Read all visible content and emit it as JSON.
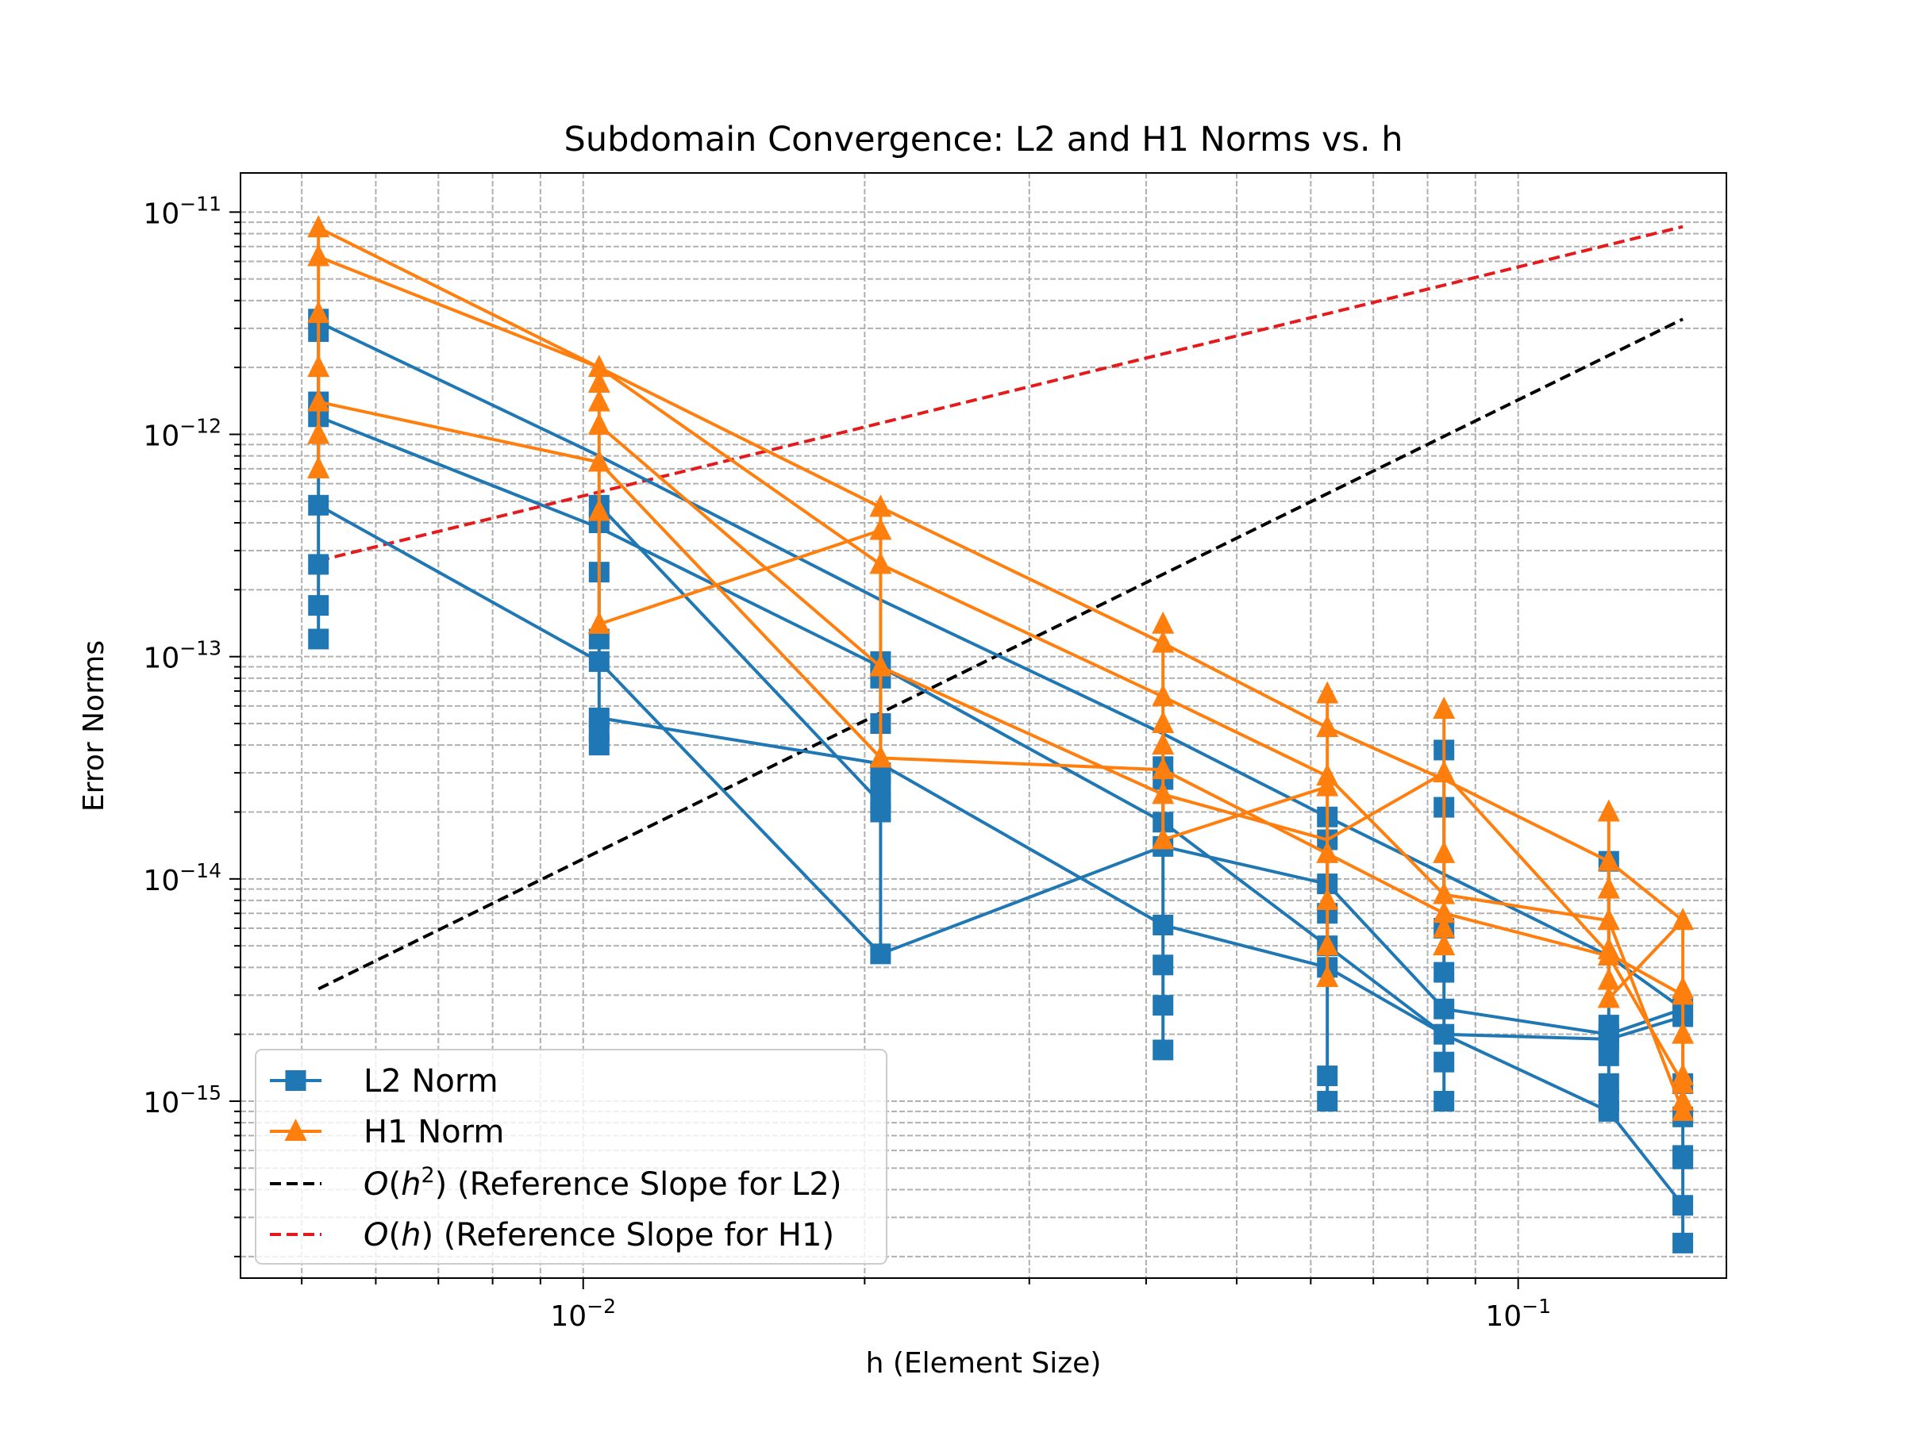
{
  "chart_data": {
    "type": "line",
    "title": "Subdomain Convergence: L2 and H1 Norms vs. h",
    "xlabel": "h (Element Size)",
    "ylabel": "Error Norms",
    "x_scale": "log",
    "y_scale": "log",
    "xlim": [
      0.0043,
      0.167
    ],
    "ylim": [
      1.6e-16,
      1.5e-11
    ],
    "grid": true,
    "legend_position": "lower-left",
    "x_ticks": [
      {
        "value": 0.01,
        "base": "10",
        "exp": "−2"
      },
      {
        "value": 0.1,
        "base": "10",
        "exp": "−1"
      }
    ],
    "y_ticks": [
      {
        "value": 1e-15,
        "base": "10",
        "exp": "−15"
      },
      {
        "value": 1e-14,
        "base": "10",
        "exp": "−14"
      },
      {
        "value": 1e-13,
        "base": "10",
        "exp": "−13"
      },
      {
        "value": 1e-12,
        "base": "10",
        "exp": "−12"
      },
      {
        "value": 1e-11,
        "base": "10",
        "exp": "−11"
      }
    ],
    "series": [
      {
        "name": "L2 Norm",
        "color": "#1f77b4",
        "marker": "square",
        "lines": [
          {
            "x": [
              0.00521,
              0.0104,
              0.0208,
              0.0417,
              0.0625,
              0.0833,
              0.125,
              0.15
            ],
            "y": [
              3.2e-12,
              8e-13,
              1.8e-13,
              4.5e-14,
              1.9e-14,
              1.05e-14,
              4.5e-15,
              2.6e-15
            ]
          },
          {
            "x": [
              0.00521,
              0.0104,
              0.0208,
              0.0417,
              0.0625,
              0.0833,
              0.125,
              0.15
            ],
            "y": [
              1.2e-12,
              3.8e-13,
              9e-14,
              1.8e-14,
              5e-15,
              2e-15,
              9e-16,
              3.4e-16
            ]
          },
          {
            "x": [
              0.00521,
              0.0104,
              0.0208,
              0.0417,
              0.0625,
              0.0833,
              0.125,
              0.15
            ],
            "y": [
              4.8e-13,
              9.5e-14,
              4.6e-15,
              1.4e-14,
              9.5e-15,
              2.6e-15,
              2e-15,
              2.6e-15
            ]
          },
          {
            "x": [
              0.0104,
              0.0208,
              0.0417,
              0.0625,
              0.0833,
              0.125,
              0.15
            ],
            "y": [
              5.3e-14,
              3.3e-14,
              6.2e-15,
              4e-15,
              2e-15,
              1.9e-15,
              2.4e-15
            ]
          },
          {
            "x": [
              0.0104,
              0.0208
            ],
            "y": [
              4.8e-13,
              2.2e-14
            ]
          },
          {
            "x": [
              0.00521,
              0.00521
            ],
            "y": [
              3.3e-12,
              1.2e-13
            ]
          },
          {
            "x": [
              0.0104,
              0.0104
            ],
            "y": [
              4.8e-13,
              4e-14
            ]
          },
          {
            "x": [
              0.0208,
              0.0208
            ],
            "y": [
              9.5e-14,
              4.6e-15
            ]
          },
          {
            "x": [
              0.0417,
              0.0417
            ],
            "y": [
              3.2e-14,
              1.7e-15
            ]
          },
          {
            "x": [
              0.0625,
              0.0625
            ],
            "y": [
              1.9e-14,
              1e-15
            ]
          },
          {
            "x": [
              0.0833,
              0.0833
            ],
            "y": [
              3.8e-14,
              1e-15
            ]
          },
          {
            "x": [
              0.125,
              0.125
            ],
            "y": [
              1.2e-14,
              9e-16
            ]
          },
          {
            "x": [
              0.15,
              0.15
            ],
            "y": [
              2.6e-15,
              2.3e-16
            ]
          }
        ],
        "points": {
          "x": [
            0.00521,
            0.00521,
            0.00521,
            0.00521,
            0.00521,
            0.00521,
            0.00521,
            0.00521,
            0.0104,
            0.0104,
            0.0104,
            0.0104,
            0.0104,
            0.0104,
            0.0104,
            0.0104,
            0.0208,
            0.0208,
            0.0208,
            0.0208,
            0.0208,
            0.0208,
            0.0208,
            0.0208,
            0.0417,
            0.0417,
            0.0417,
            0.0417,
            0.0417,
            0.0417,
            0.0417,
            0.0417,
            0.0625,
            0.0625,
            0.0625,
            0.0625,
            0.0625,
            0.0625,
            0.0625,
            0.0625,
            0.0833,
            0.0833,
            0.0833,
            0.0833,
            0.0833,
            0.0833,
            0.0833,
            0.0833,
            0.125,
            0.125,
            0.125,
            0.125,
            0.125,
            0.125,
            0.125,
            0.125,
            0.15,
            0.15,
            0.15,
            0.15,
            0.15,
            0.15,
            0.15,
            0.15
          ],
          "y": [
            3.3e-12,
            2.9e-12,
            1.4e-12,
            1.2e-12,
            4.8e-13,
            2.6e-13,
            1.7e-13,
            1.2e-13,
            4.8e-13,
            4e-13,
            2.4e-13,
            1.2e-13,
            9.5e-14,
            5.3e-14,
            4.6e-14,
            4e-14,
            9.5e-14,
            8e-14,
            5e-14,
            3e-14,
            2.6e-14,
            2.2e-14,
            2e-14,
            4.6e-15,
            3.2e-14,
            2.8e-14,
            1.8e-14,
            1.4e-14,
            6.2e-15,
            4.1e-15,
            2.7e-15,
            1.7e-15,
            1.9e-14,
            1.5e-14,
            9.5e-15,
            7e-15,
            5e-15,
            4e-15,
            1.3e-15,
            1e-15,
            3.8e-14,
            2.1e-14,
            6e-15,
            3.8e-15,
            2.6e-15,
            2e-15,
            1.5e-15,
            1e-15,
            1.2e-14,
            2.2e-15,
            2e-15,
            1.9e-15,
            1.6e-15,
            1.2e-15,
            1e-15,
            9e-16,
            2.6e-15,
            2.4e-15,
            1.2e-15,
            8.5e-16,
            5.7e-16,
            5.5e-16,
            3.4e-16,
            2.3e-16
          ]
        }
      },
      {
        "name": "H1 Norm",
        "color": "#ff7f0e",
        "marker": "triangle",
        "lines": [
          {
            "x": [
              0.00521,
              0.0104,
              0.0208,
              0.0417,
              0.0625,
              0.0833,
              0.125,
              0.15
            ],
            "y": [
              8.5e-12,
              2e-12,
              4.7e-13,
              1.15e-13,
              4.8e-14,
              2.8e-14,
              1.2e-14,
              6.5e-15
            ]
          },
          {
            "x": [
              0.00521,
              0.0104,
              0.0208,
              0.0417,
              0.0625,
              0.0833,
              0.125,
              0.15
            ],
            "y": [
              6.3e-12,
              2e-12,
              2.6e-13,
              6.6e-14,
              2.9e-14,
              8.5e-15,
              6.5e-15,
              9e-16
            ]
          },
          {
            "x": [
              0.00521,
              0.0104,
              0.0208,
              0.0417,
              0.0625,
              0.0833,
              0.125,
              0.15
            ],
            "y": [
              1.4e-12,
              7.5e-13,
              3.5e-14,
              3.1e-14,
              1.3e-14,
              7e-15,
              4.5e-15,
              1.2e-15
            ]
          },
          {
            "x": [
              0.0104,
              0.0208,
              0.0417,
              0.0625,
              0.0833,
              0.125,
              0.15
            ],
            "y": [
              1.1e-12,
              9e-14,
              2.4e-14,
              1.5e-14,
              3e-14,
              4.6e-15,
              3e-15
            ]
          },
          {
            "x": [
              0.0104,
              0.0208
            ],
            "y": [
              1.4e-13,
              3.7e-13
            ]
          },
          {
            "x": [
              0.0417,
              0.0625
            ],
            "y": [
              1.5e-14,
              2.6e-14
            ]
          },
          {
            "x": [
              0.125,
              0.15
            ],
            "y": [
              2.9e-15,
              6.5e-15
            ]
          },
          {
            "x": [
              0.00521,
              0.00521
            ],
            "y": [
              8.5e-12,
              7e-13
            ]
          },
          {
            "x": [
              0.0104,
              0.0104
            ],
            "y": [
              2e-12,
              1.4e-13
            ]
          },
          {
            "x": [
              0.0208,
              0.0208
            ],
            "y": [
              4.7e-13,
              3.5e-14
            ]
          },
          {
            "x": [
              0.0417,
              0.0417
            ],
            "y": [
              1.4e-13,
              1.5e-14
            ]
          },
          {
            "x": [
              0.0625,
              0.0625
            ],
            "y": [
              6.8e-14,
              3.6e-15
            ]
          },
          {
            "x": [
              0.0833,
              0.0833
            ],
            "y": [
              5.8e-14,
              5e-15
            ]
          },
          {
            "x": [
              0.125,
              0.125
            ],
            "y": [
              2e-14,
              2.9e-15
            ]
          },
          {
            "x": [
              0.15,
              0.15
            ],
            "y": [
              6.5e-15,
              9e-16
            ]
          }
        ],
        "points": {
          "x": [
            0.00521,
            0.00521,
            0.00521,
            0.00521,
            0.00521,
            0.00521,
            0.00521,
            0.00521,
            0.0104,
            0.0104,
            0.0104,
            0.0104,
            0.0104,
            0.0104,
            0.0104,
            0.0104,
            0.0208,
            0.0208,
            0.0208,
            0.0208,
            0.0208,
            0.0208,
            0.0208,
            0.0208,
            0.0417,
            0.0417,
            0.0417,
            0.0417,
            0.0417,
            0.0417,
            0.0417,
            0.0417,
            0.0625,
            0.0625,
            0.0625,
            0.0625,
            0.0625,
            0.0625,
            0.0625,
            0.0625,
            0.0833,
            0.0833,
            0.0833,
            0.0833,
            0.0833,
            0.0833,
            0.0833,
            0.0833,
            0.125,
            0.125,
            0.125,
            0.125,
            0.125,
            0.125,
            0.125,
            0.125,
            0.15,
            0.15,
            0.15,
            0.15,
            0.15,
            0.15,
            0.15,
            0.15
          ],
          "y": [
            8.5e-12,
            6.3e-12,
            3.5e-12,
            2e-12,
            1.4e-12,
            1e-12,
            7e-13,
            7e-13,
            2e-12,
            1.7e-12,
            1.4e-12,
            1.1e-12,
            7.5e-13,
            4.5e-13,
            1.4e-13,
            1.4e-13,
            4.7e-13,
            3.7e-13,
            2.6e-13,
            9e-14,
            3.5e-14,
            3.5e-14,
            3.5e-14,
            3.5e-14,
            1.4e-13,
            1.15e-13,
            6.6e-14,
            5e-14,
            4e-14,
            3.1e-14,
            2.4e-14,
            1.5e-14,
            6.8e-14,
            4.8e-14,
            2.9e-14,
            2.6e-14,
            1.3e-14,
            8e-15,
            5e-15,
            3.6e-15,
            5.8e-14,
            3e-14,
            1.3e-14,
            8.5e-15,
            7e-15,
            6e-15,
            5e-15,
            5e-15,
            2e-14,
            1.2e-14,
            9e-15,
            6.5e-15,
            4.8e-15,
            4.5e-15,
            3.5e-15,
            2.9e-15,
            6.5e-15,
            3.2e-15,
            3e-15,
            2e-15,
            1.3e-15,
            1.2e-15,
            1e-15,
            9e-16
          ]
        }
      }
    ],
    "reference_lines": [
      {
        "name": "O(h^2) (Reference Slope for L2)",
        "color": "#000000",
        "dash": "dashed",
        "x": [
          0.00521,
          0.15
        ],
        "y": [
          3.2e-15,
          3.3e-12
        ]
      },
      {
        "name": "O(h) (Reference Slope for H1)",
        "color": "#e41a1c",
        "dash": "dashed",
        "x": [
          0.00521,
          0.15
        ],
        "y": [
          2.7e-13,
          8.6e-12
        ]
      }
    ],
    "legend": {
      "entries": [
        {
          "kind": "series",
          "text": "L2 Norm"
        },
        {
          "kind": "series",
          "text": "H1 Norm"
        },
        {
          "kind": "ref",
          "pre": "O",
          "mid": "(",
          "h": "h",
          "sup": "2",
          "post": ") (Reference Slope for L2)"
        },
        {
          "kind": "ref",
          "pre": "O",
          "mid": "(",
          "h": "h",
          "sup": "",
          "post": ") (Reference Slope for H1)"
        }
      ]
    }
  }
}
